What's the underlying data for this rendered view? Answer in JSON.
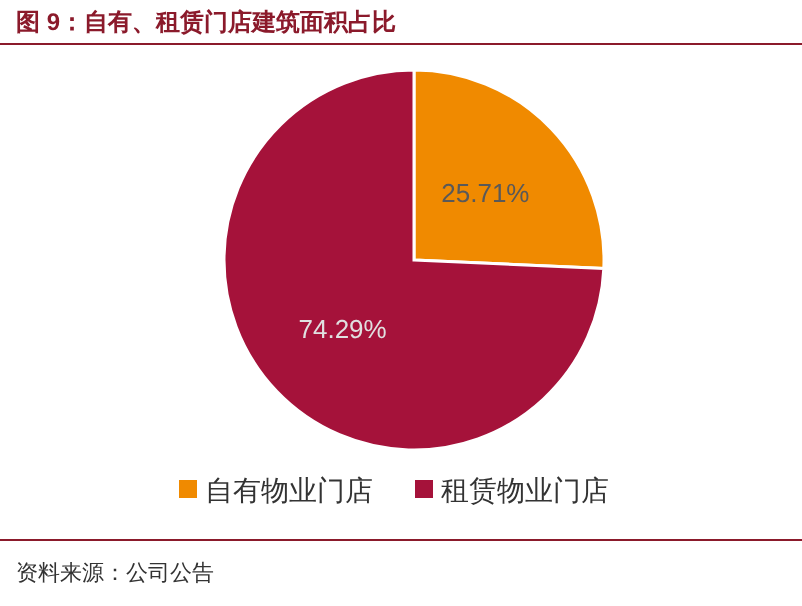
{
  "chart_data": {
    "type": "pie",
    "title": "图 9：自有、租赁门店建筑面积占比",
    "categories": [
      "自有物业门店",
      "租赁物业门店"
    ],
    "values": [
      25.71,
      74.29
    ],
    "colors": [
      "#f08a00",
      "#a5123a"
    ],
    "value_labels": [
      "25.71%",
      "74.29%"
    ],
    "legend": "bottom",
    "annotations": [
      "资料来源：公司公告"
    ]
  }
}
